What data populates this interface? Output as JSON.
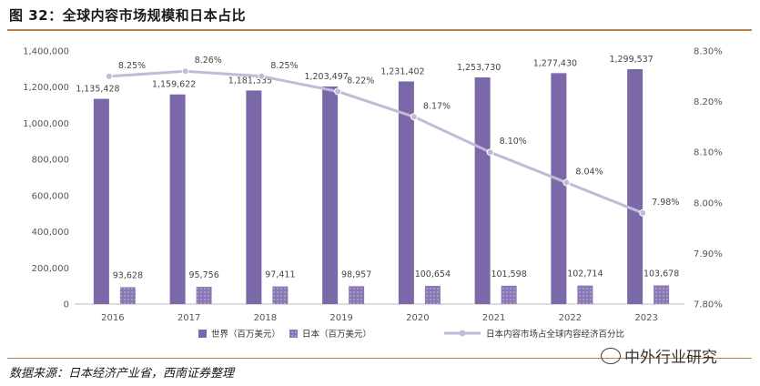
{
  "title": "图 32：全球内容市场规模和日本占比",
  "source": "数据来源：日本经济产业省，西南证券整理",
  "watermark": "中外行业研究",
  "colors": {
    "world": "#7b68a8",
    "japan_fill": "#8a78b4",
    "line": "#c0bcd8",
    "rule": "#b6884f"
  },
  "chart_data": {
    "type": "bar",
    "categories": [
      "2016",
      "2017",
      "2018",
      "2019",
      "2020",
      "2021",
      "2022",
      "2023"
    ],
    "series": [
      {
        "name": "世界（百万美元）",
        "axis": "left",
        "values": [
          1135428,
          1159622,
          1181335,
          1203497,
          1231402,
          1253730,
          1277430,
          1299537
        ],
        "labels": [
          "1,135,428",
          "1,159,622",
          "1,181,335",
          "1,203,497",
          "1,231,402",
          "1,253,730",
          "1,277,430",
          "1,299,537"
        ]
      },
      {
        "name": "日本（百万美元）",
        "axis": "left",
        "values": [
          93628,
          95756,
          97411,
          98957,
          100654,
          101598,
          102714,
          103678
        ],
        "labels": [
          "93,628",
          "95,756",
          "97,411",
          "98,957",
          "100,654",
          "101,598",
          "102,714",
          "103,678"
        ]
      },
      {
        "name": "日本内容市场占全球内容经济百分比",
        "axis": "right",
        "type": "line",
        "values": [
          8.25,
          8.26,
          8.25,
          8.22,
          8.17,
          8.1,
          8.04,
          7.98
        ],
        "labels": [
          "8.25%",
          "8.26%",
          "8.25%",
          "8.22%",
          "8.17%",
          "8.10%",
          "8.04%",
          "7.98%"
        ]
      }
    ],
    "left_axis": {
      "range": [
        0,
        1400000
      ],
      "ticks": [
        "0",
        "200,000",
        "400,000",
        "600,000",
        "800,000",
        "1,000,000",
        "1,200,000",
        "1,400,000"
      ]
    },
    "right_axis": {
      "range": [
        7.8,
        8.3
      ],
      "ticks": [
        "7.80%",
        "7.90%",
        "8.00%",
        "8.10%",
        "8.20%",
        "8.30%"
      ]
    },
    "legend": [
      "世界（百万美元）",
      "日本（百万美元）",
      "日本内容市场占全球内容经济百分比"
    ]
  }
}
